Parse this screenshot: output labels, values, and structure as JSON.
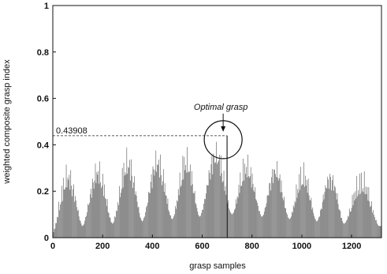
{
  "chart_data": {
    "type": "bar",
    "title": "",
    "xlabel": "grasp samples",
    "ylabel": "weighted composite grasp index",
    "xlim": [
      0,
      1320
    ],
    "ylim": [
      0,
      1
    ],
    "x_ticks": [
      "0",
      "200",
      "400",
      "600",
      "800",
      "1000",
      "1200"
    ],
    "y_ticks": [
      "0",
      "0.2",
      "0.4",
      "0.6",
      "0.8",
      "1"
    ],
    "grid": false,
    "series": [
      {
        "peaks": [
          {
            "x": 60,
            "y": 0.33
          },
          {
            "x": 180,
            "y": 0.35
          },
          {
            "x": 300,
            "y": 0.4
          },
          {
            "x": 420,
            "y": 0.4
          },
          {
            "x": 530,
            "y": 0.4
          },
          {
            "x": 640,
            "y": 0.43
          },
          {
            "x": 700,
            "y": 0.43908
          },
          {
            "x": 790,
            "y": 0.36
          },
          {
            "x": 900,
            "y": 0.35
          },
          {
            "x": 1010,
            "y": 0.33
          },
          {
            "x": 1120,
            "y": 0.31
          },
          {
            "x": 1230,
            "y": 0.3
          }
        ],
        "valleys": [
          {
            "x": 0,
            "y": 0.02
          },
          {
            "x": 120,
            "y": 0.05
          },
          {
            "x": 240,
            "y": 0.06
          },
          {
            "x": 360,
            "y": 0.07
          },
          {
            "x": 480,
            "y": 0.08
          },
          {
            "x": 590,
            "y": 0.09
          },
          {
            "x": 720,
            "y": 0.1
          },
          {
            "x": 840,
            "y": 0.09
          },
          {
            "x": 950,
            "y": 0.08
          },
          {
            "x": 1060,
            "y": 0.07
          },
          {
            "x": 1170,
            "y": 0.06
          },
          {
            "x": 1310,
            "y": 0.05
          }
        ],
        "sample_count": 1320
      }
    ],
    "annotations": [
      {
        "text": "Optimal grasp",
        "x": 700,
        "y": 0.43908
      },
      {
        "text": "0.43908",
        "x": 700,
        "y": 0.43908
      }
    ]
  }
}
